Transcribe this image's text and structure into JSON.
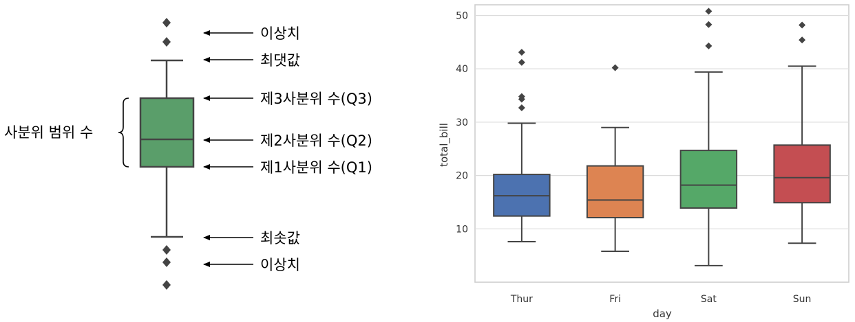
{
  "diagram": {
    "labels": {
      "outlier_top": "이상치",
      "max": "최댓값",
      "q3": "제3사분위 수(Q3)",
      "q2": "제2사분위 수(Q2)",
      "q1": "제1사분위 수(Q1)",
      "min": "최솟값",
      "outlier_bottom": "이상치",
      "iqr": "사분위 범위 수"
    },
    "box_color": "#5a9e6a",
    "line_color": "#444444"
  },
  "chart_data": {
    "type": "box",
    "xlabel": "day",
    "ylabel": "total_bill",
    "ylim": [
      0,
      52
    ],
    "yticks": [
      10,
      20,
      30,
      40,
      50
    ],
    "grid": true,
    "categories": [
      "Thur",
      "Fri",
      "Sat",
      "Sun"
    ],
    "colors": [
      "#4c72b0",
      "#dd8452",
      "#55a868",
      "#c44e52"
    ],
    "boxes": [
      {
        "whislo": 7.6,
        "q1": 12.4,
        "med": 16.2,
        "q3": 20.2,
        "whishi": 29.8,
        "fliers": [
          32.7,
          34.3,
          34.8,
          41.2,
          43.1
        ]
      },
      {
        "whislo": 5.8,
        "q1": 12.1,
        "med": 15.4,
        "q3": 21.8,
        "whishi": 29.0,
        "fliers": [
          40.2
        ]
      },
      {
        "whislo": 3.1,
        "q1": 13.9,
        "med": 18.2,
        "q3": 24.7,
        "whishi": 39.4,
        "fliers": [
          44.3,
          48.3,
          50.8
        ]
      },
      {
        "whislo": 7.3,
        "q1": 14.9,
        "med": 19.6,
        "q3": 25.7,
        "whishi": 40.5,
        "fliers": [
          45.4,
          48.2
        ]
      }
    ]
  }
}
